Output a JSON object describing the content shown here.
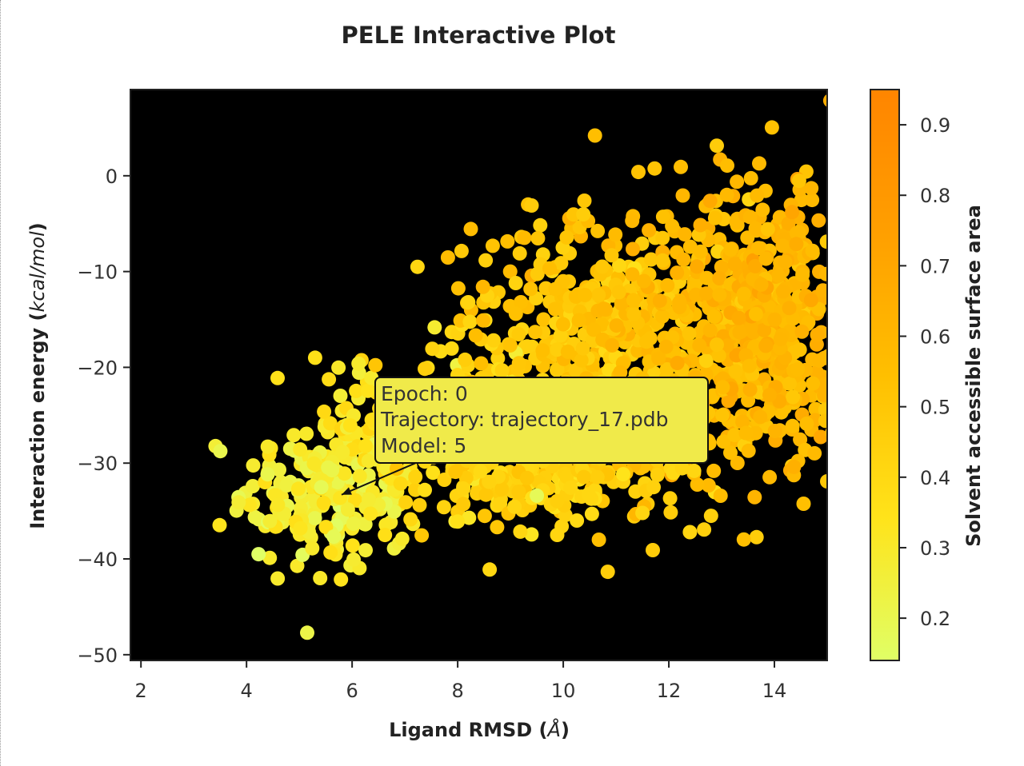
{
  "chart_data": {
    "type": "scatter",
    "title": "PELE Interactive Plot",
    "xlabel": "Ligand RMSD (Å)",
    "xlabel_prefix": "Ligand RMSD (",
    "xlabel_unit": "Å",
    "xlabel_suffix": ")",
    "ylabel": "Interaction energy (kcal/mol)",
    "ylabel_prefix": "Interaction energy (",
    "ylabel_unit": "kcal/mol",
    "ylabel_suffix": ")",
    "xlim": [
      1.8,
      15.0
    ],
    "ylim": [
      -50.6,
      9.0
    ],
    "xticks": [
      2,
      4,
      6,
      8,
      10,
      12,
      14
    ],
    "yticks": [
      0,
      -10,
      -20,
      -30,
      -40,
      -50
    ],
    "grid": false,
    "background": "#000000",
    "colorbar": {
      "label": "Solvent accessible surface area",
      "range": [
        0.14,
        0.95
      ],
      "ticks": [
        0.2,
        0.3,
        0.4,
        0.5,
        0.6,
        0.7,
        0.8,
        0.9
      ],
      "colormap": [
        "#e0ff66",
        "#ffe31a",
        "#ffbf00",
        "#ff9f00",
        "#ff8500"
      ]
    },
    "points": {
      "note_series": "points are sampled clusters of the visible cloud",
      "clusters": [
        {
          "cx": 5.6,
          "cy": -33,
          "sx": 0.85,
          "sy": 4.2,
          "n": 230,
          "c": 0.28,
          "cs": 0.05
        },
        {
          "cx": 6.6,
          "cy": -27,
          "sx": 0.7,
          "sy": 4.0,
          "n": 90,
          "c": 0.34,
          "cs": 0.05
        },
        {
          "cx": 8.6,
          "cy": -26,
          "sx": 0.9,
          "sy": 5.5,
          "n": 180,
          "c": 0.42,
          "cs": 0.05
        },
        {
          "cx": 10.6,
          "cy": -22,
          "sx": 1.0,
          "sy": 7.0,
          "n": 260,
          "c": 0.48,
          "cs": 0.05
        },
        {
          "cx": 10.5,
          "cy": -12,
          "sx": 1.1,
          "sy": 4.0,
          "n": 150,
          "c": 0.52,
          "cs": 0.05
        },
        {
          "cx": 12.8,
          "cy": -17,
          "sx": 1.2,
          "sy": 7.0,
          "n": 420,
          "c": 0.56,
          "cs": 0.05
        },
        {
          "cx": 14.0,
          "cy": -14,
          "sx": 0.8,
          "sy": 7.5,
          "n": 300,
          "c": 0.6,
          "cs": 0.05
        },
        {
          "cx": 9.8,
          "cy": -32,
          "sx": 1.2,
          "sy": 1.6,
          "n": 110,
          "c": 0.44,
          "cs": 0.04
        }
      ],
      "outliers": [
        {
          "x": 10.6,
          "y": 4.2,
          "c": 0.55
        },
        {
          "x": 5.15,
          "y": -47.7,
          "c": 0.22
        },
        {
          "x": 3.85,
          "y": -34.1,
          "c": 0.27
        },
        {
          "x": 12.4,
          "y": -37.2,
          "c": 0.42
        },
        {
          "x": 12.8,
          "y": -35.5,
          "c": 0.45
        },
        {
          "x": 11.5,
          "y": -35.2,
          "c": 0.42
        },
        {
          "x": 8.0,
          "y": -36.1,
          "c": 0.35
        },
        {
          "x": 9.1,
          "y": -11.2,
          "c": 0.43
        },
        {
          "x": 9.4,
          "y": -3.1,
          "c": 0.47
        },
        {
          "x": 8.2,
          "y": -13.2,
          "c": 0.42
        },
        {
          "x": 14.7,
          "y": -1.3,
          "c": 0.6
        },
        {
          "x": 15.0,
          "y": -31.9,
          "c": 0.5
        },
        {
          "x": 13.1,
          "y": -2.0,
          "c": 0.58
        },
        {
          "x": 6.95,
          "y": -37.9,
          "c": 0.3
        },
        {
          "x": 5.3,
          "y": -19.0,
          "c": 0.36
        },
        {
          "x": 10.4,
          "y": -2.6,
          "c": 0.5
        },
        {
          "x": 9.5,
          "y": -33.4,
          "c": 0.18
        }
      ]
    },
    "annotation": {
      "lines": [
        "Epoch: 0",
        "Trajectory: trajectory_17.pdb",
        "Model: 5"
      ],
      "point": {
        "x": 5.8,
        "y": -33.3
      },
      "arrow_from": {
        "x": 7.2,
        "y": -30.0
      },
      "box_color": "#f0ea4a",
      "border_color": "#111111"
    }
  }
}
